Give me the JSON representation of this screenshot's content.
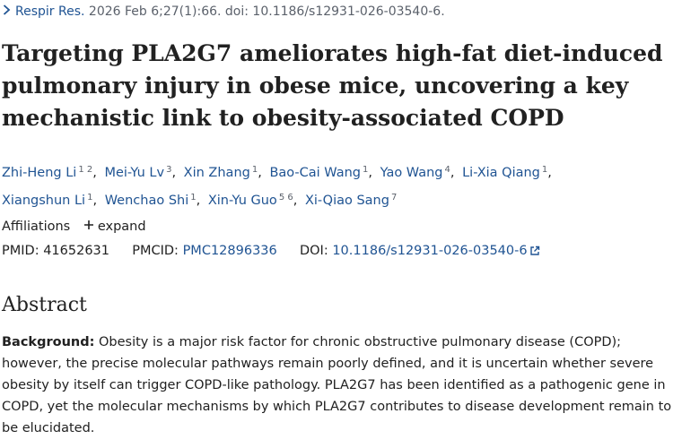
{
  "citation": {
    "journal": "Respir Res.",
    "details": "2026 Feb 6;27(1):66. doi: 10.1186/s12931-026-03540-6."
  },
  "article": {
    "title": "Targeting PLA2G7 ameliorates high-fat diet-induced pulmonary injury in obese mice, uncovering a key mechanistic link to obesity-associated COPD"
  },
  "authors": [
    {
      "name": "Zhi-Heng Li",
      "affs": "1 2"
    },
    {
      "name": "Mei-Yu Lv",
      "affs": "3"
    },
    {
      "name": "Xin Zhang",
      "affs": "1"
    },
    {
      "name": "Bao-Cai Wang",
      "affs": "1"
    },
    {
      "name": "Yao Wang",
      "affs": "4"
    },
    {
      "name": "Li-Xia Qiang",
      "affs": "1"
    },
    {
      "name": "Xiangshun Li",
      "affs": "1"
    },
    {
      "name": "Wenchao Shi",
      "affs": "1"
    },
    {
      "name": "Xin-Yu Guo",
      "affs": "5 6"
    },
    {
      "name": "Xi-Qiao Sang",
      "affs": "7"
    }
  ],
  "affiliations": {
    "label": "Affiliations",
    "expand_label": "expand"
  },
  "identifiers": {
    "pmid_label": "PMID:",
    "pmid": "41652631",
    "pmcid_label": "PMCID:",
    "pmcid": "PMC12896336",
    "doi_label": "DOI:",
    "doi": "10.1186/s12931-026-03540-6"
  },
  "abstract": {
    "heading": "Abstract",
    "background_label": "Background:",
    "background_text": "Obesity is a major risk factor for chronic obstructive pulmonary disease (COPD); however, the precise molecular pathways remain poorly defined, and it is uncertain whether severe obesity by itself can trigger COPD-like pathology. PLA2G7 has been identified as a pathogenic gene in COPD, yet the molecular mechanisms by which PLA2G7 contributes to disease development remain to be elucidated."
  },
  "icons": {
    "chevron": "chevron-right-icon",
    "expand": "plus-icon",
    "external": "external-link-icon"
  },
  "colors": {
    "link": "#205493",
    "text": "#212121",
    "muted": "#5b616b"
  }
}
